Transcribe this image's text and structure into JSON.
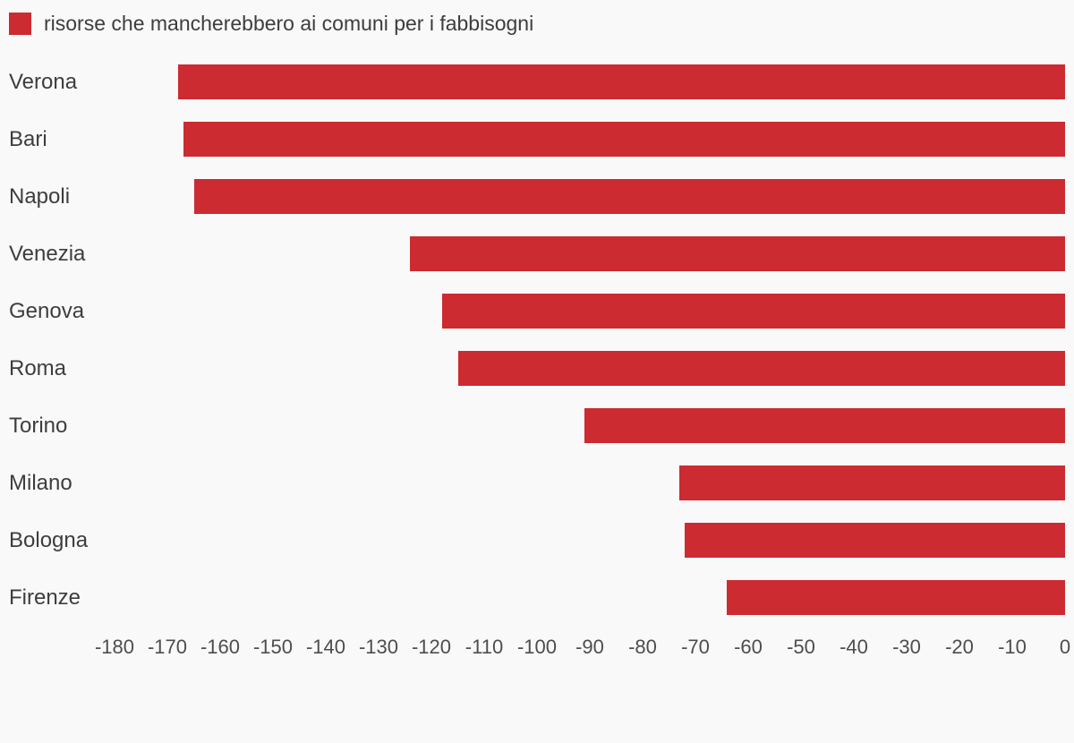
{
  "legend": {
    "label": "risorse che mancherebbero ai comuni per i fabbisogni"
  },
  "colors": {
    "bar": "#cb2b31",
    "background": "#f9f9f9",
    "category_text": "#3d3d3d",
    "tick_text": "#4d4d4d"
  },
  "chart_data": {
    "type": "bar",
    "orientation": "horizontal",
    "title": "",
    "legend_label": "risorse che mancherebbero ai comuni per i fabbisogni",
    "legend_position": "top-left",
    "categories": [
      "Verona",
      "Bari",
      "Napoli",
      "Venezia",
      "Genova",
      "Roma",
      "Torino",
      "Milano",
      "Bologna",
      "Firenze"
    ],
    "values": [
      -168,
      -167,
      -165,
      -124,
      -118,
      -115,
      -91,
      -73,
      -72,
      -64
    ],
    "bar_color": "#cb2b31",
    "xlabel": "",
    "ylabel": "",
    "xlim": [
      -180,
      0
    ],
    "xticks": [
      -180,
      -170,
      -160,
      -150,
      -140,
      -130,
      -120,
      -110,
      -100,
      -90,
      -80,
      -70,
      -60,
      -50,
      -40,
      -30,
      -20,
      -10,
      0
    ],
    "grid": false
  }
}
